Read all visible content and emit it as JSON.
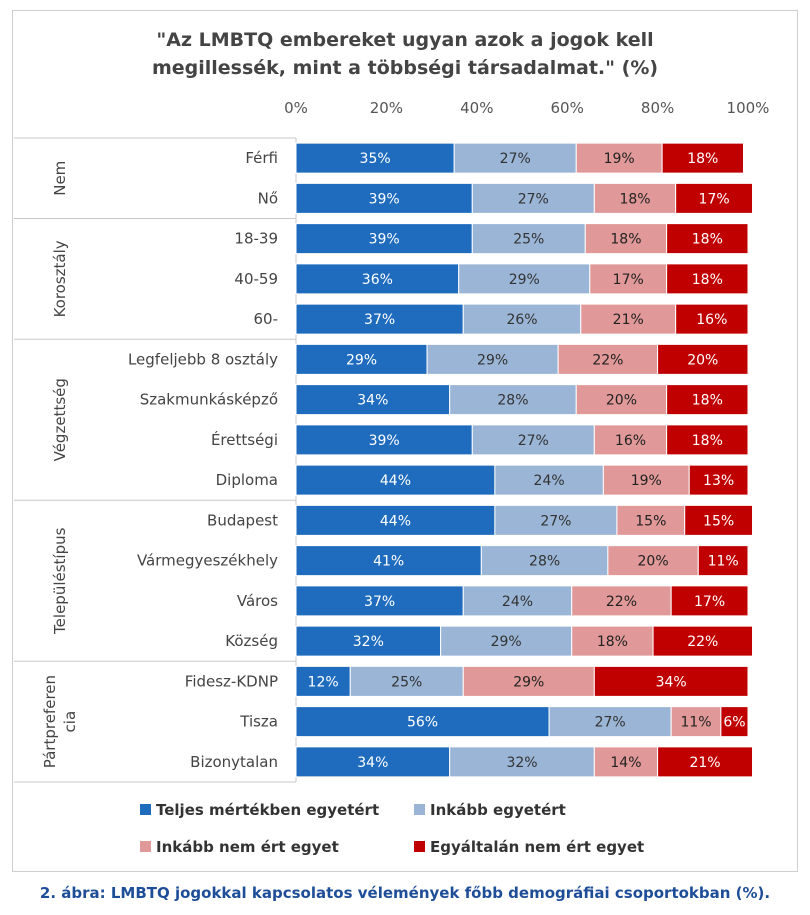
{
  "chart_data": {
    "type": "bar",
    "orientation": "horizontal",
    "stacked": true,
    "title": "\"Az LMBTQ embereket ugyan azok a jogok kell megillessék, mint a többségi társadalmat.\" (%)",
    "title_lines": [
      "\"Az LMBTQ embereket ugyan azok a jogok kell",
      "megillessék, mint a többségi társadalmat.\" (%)"
    ],
    "x_ticks": [
      "0%",
      "20%",
      "40%",
      "60%",
      "80%",
      "100%"
    ],
    "xlim": [
      0,
      100
    ],
    "legend_position": "bottom",
    "groups": [
      {
        "name": "Nem",
        "label_lines": [
          "Nem"
        ],
        "categories": [
          0,
          1
        ]
      },
      {
        "name": "Korosztály",
        "label_lines": [
          "Korosztály"
        ],
        "categories": [
          2,
          3,
          4
        ]
      },
      {
        "name": "Végzettség",
        "label_lines": [
          "Végzettség"
        ],
        "categories": [
          5,
          6,
          7,
          8
        ]
      },
      {
        "name": "Településtípus",
        "label_lines": [
          "Településtípus"
        ],
        "categories": [
          9,
          10,
          11,
          12
        ]
      },
      {
        "name": "Pártpreferencia",
        "label_lines": [
          "Pártpreferen",
          "cia"
        ],
        "categories": [
          13,
          14,
          15
        ]
      }
    ],
    "categories": [
      "Férfi",
      "Nő",
      "18-39",
      "40-59",
      "60-",
      "Legfeljebb 8 osztály",
      "Szakmunkásképző",
      "Érettségi",
      "Diploma",
      "Budapest",
      "Vármegyeszékhely",
      "Város",
      "Község",
      "Fidesz-KDNP",
      "Tisza",
      "Bizonytalan"
    ],
    "series": [
      {
        "name": "Teljes mértékben egyetért",
        "color": "#1f6cbf",
        "label_color": "#ffffff",
        "values": [
          35,
          39,
          39,
          36,
          37,
          29,
          34,
          39,
          44,
          44,
          41,
          37,
          32,
          12,
          56,
          34
        ]
      },
      {
        "name": "Inkább egyetért",
        "color": "#9ab5d6",
        "label_color": "#333333",
        "values": [
          27,
          27,
          25,
          29,
          26,
          29,
          28,
          27,
          24,
          27,
          28,
          24,
          29,
          25,
          27,
          32
        ]
      },
      {
        "name": "Inkább nem ért egyet",
        "color": "#e09898",
        "label_color": "#222222",
        "values": [
          19,
          18,
          18,
          17,
          21,
          22,
          20,
          16,
          19,
          15,
          20,
          22,
          18,
          29,
          11,
          14
        ]
      },
      {
        "name": "Egyáltalán nem ért egyet",
        "color": "#c00000",
        "label_color": "#ffffff",
        "values": [
          18,
          17,
          18,
          18,
          16,
          20,
          18,
          18,
          13,
          15,
          11,
          17,
          22,
          34,
          6,
          21
        ]
      }
    ]
  },
  "caption": "2. ábra: LMBTQ jogokkal kapcsolatos vélemények főbb demográfiai csoportokban (%)."
}
